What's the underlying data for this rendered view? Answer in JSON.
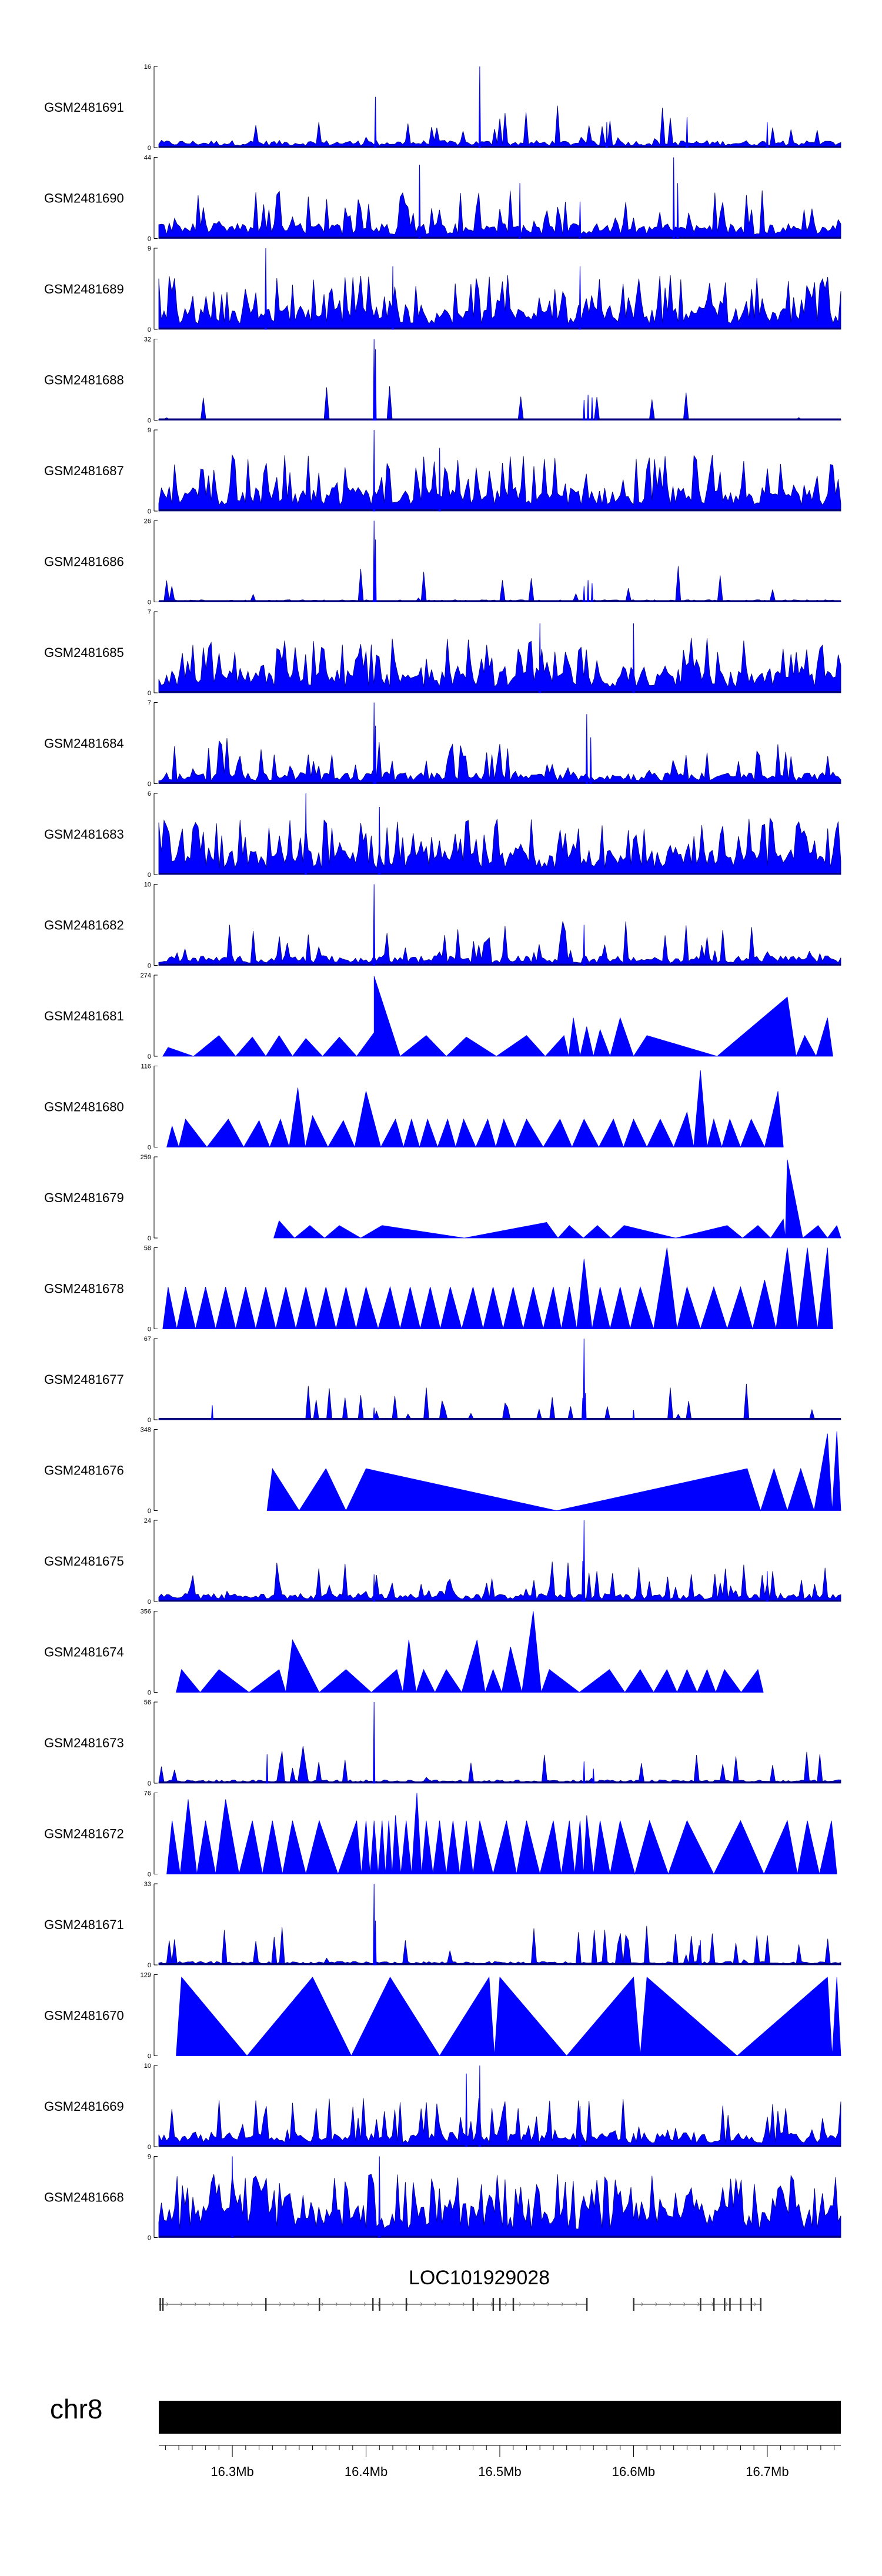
{
  "chart_data": {
    "type": "area",
    "title": "",
    "xlabel": "",
    "ylabel": "",
    "x_range_mb": [
      16.245,
      16.755
    ],
    "fill_color": "#0000ff",
    "outline_color": "#00007f",
    "tracks": [
      {
        "name": "GSM2481691",
        "ymax": 16,
        "style": "dense",
        "baseline": 1.2,
        "noise": 0.1,
        "spikes": [
          [
            16.407,
            10
          ],
          [
            16.485,
            16
          ],
          [
            16.58,
            5
          ],
          [
            16.64,
            6
          ],
          [
            16.7,
            5
          ]
        ]
      },
      {
        "name": "GSM2481690",
        "ymax": 44,
        "style": "dense",
        "baseline": 7,
        "noise": 0.18,
        "spikes": [
          [
            16.44,
            40
          ],
          [
            16.515,
            30
          ],
          [
            16.63,
            44
          ],
          [
            16.633,
            30
          ],
          [
            16.56,
            20
          ]
        ]
      },
      {
        "name": "GSM2481689",
        "ymax": 9,
        "style": "dense",
        "baseline": 2.0,
        "noise": 0.35,
        "spikes": [
          [
            16.325,
            9
          ],
          [
            16.42,
            7
          ],
          [
            16.56,
            7
          ]
        ]
      },
      {
        "name": "GSM2481688",
        "ymax": 32,
        "style": "dense",
        "baseline": 0.4,
        "noise": 0.05,
        "spikes": [
          [
            16.406,
            32
          ],
          [
            16.407,
            28
          ],
          [
            16.563,
            8
          ],
          [
            16.566,
            10
          ],
          [
            16.569,
            9
          ],
          [
            16.572,
            7
          ]
        ]
      },
      {
        "name": "GSM2481687",
        "ymax": 9,
        "style": "dense",
        "baseline": 2.2,
        "noise": 0.3,
        "spikes": [
          [
            16.406,
            9
          ],
          [
            16.455,
            7
          ]
        ]
      },
      {
        "name": "GSM2481686",
        "ymax": 26,
        "style": "dense",
        "baseline": 0.6,
        "noise": 0.07,
        "spikes": [
          [
            16.406,
            26
          ],
          [
            16.407,
            20
          ],
          [
            16.563,
            5
          ],
          [
            16.566,
            7
          ],
          [
            16.569,
            6
          ]
        ]
      },
      {
        "name": "GSM2481685",
        "ymax": 7,
        "style": "dense",
        "baseline": 1.6,
        "noise": 0.35,
        "spikes": [
          [
            16.53,
            6
          ],
          [
            16.6,
            6
          ]
        ]
      },
      {
        "name": "GSM2481684",
        "ymax": 7,
        "style": "dense",
        "baseline": 0.8,
        "noise": 0.22,
        "spikes": [
          [
            16.406,
            7
          ],
          [
            16.407,
            5
          ],
          [
            16.565,
            6
          ],
          [
            16.568,
            4
          ]
        ]
      },
      {
        "name": "GSM2481683",
        "ymax": 6,
        "style": "dense",
        "baseline": 1.5,
        "noise": 0.35,
        "spikes": [
          [
            16.355,
            6
          ],
          [
            16.41,
            5
          ]
        ]
      },
      {
        "name": "GSM2481682",
        "ymax": 10,
        "style": "dense",
        "baseline": 1.0,
        "noise": 0.15,
        "spikes": [
          [
            16.406,
            10
          ],
          [
            16.563,
            5
          ]
        ]
      },
      {
        "name": "GSM2481681",
        "ymax": 274,
        "style": "sparse",
        "peaks": [
          [
            16.252,
            30
          ],
          [
            16.29,
            70
          ],
          [
            16.315,
            65
          ],
          [
            16.335,
            70
          ],
          [
            16.355,
            60
          ],
          [
            16.38,
            65
          ],
          [
            16.406,
            80
          ],
          [
            16.406,
            270
          ],
          [
            16.445,
            70
          ],
          [
            16.475,
            65
          ],
          [
            16.52,
            70
          ],
          [
            16.548,
            70
          ],
          [
            16.555,
            130
          ],
          [
            16.565,
            100
          ],
          [
            16.575,
            90
          ],
          [
            16.59,
            130
          ],
          [
            16.61,
            70
          ],
          [
            16.715,
            200
          ],
          [
            16.728,
            70
          ],
          [
            16.745,
            130
          ]
        ]
      },
      {
        "name": "GSM2481680",
        "ymax": 116,
        "style": "sparse",
        "peaks": [
          [
            16.255,
            30
          ],
          [
            16.265,
            40
          ],
          [
            16.297,
            40
          ],
          [
            16.32,
            38
          ],
          [
            16.336,
            40
          ],
          [
            16.349,
            85
          ],
          [
            16.36,
            45
          ],
          [
            16.383,
            38
          ],
          [
            16.4,
            80
          ],
          [
            16.422,
            40
          ],
          [
            16.434,
            40
          ],
          [
            16.446,
            40
          ],
          [
            16.461,
            40
          ],
          [
            16.473,
            40
          ],
          [
            16.491,
            40
          ],
          [
            16.503,
            40
          ],
          [
            16.52,
            40
          ],
          [
            16.545,
            40
          ],
          [
            16.563,
            40
          ],
          [
            16.585,
            40
          ],
          [
            16.6,
            40
          ],
          [
            16.62,
            40
          ],
          [
            16.64,
            50
          ],
          [
            16.65,
            110
          ],
          [
            16.66,
            40
          ],
          [
            16.672,
            40
          ],
          [
            16.688,
            40
          ],
          [
            16.708,
            80
          ]
        ]
      },
      {
        "name": "GSM2481679",
        "ymax": 259,
        "style": "sparse",
        "peaks": [
          [
            16.335,
            55
          ],
          [
            16.358,
            40
          ],
          [
            16.38,
            40
          ],
          [
            16.412,
            40
          ],
          [
            16.535,
            50
          ],
          [
            16.552,
            40
          ],
          [
            16.573,
            40
          ],
          [
            16.593,
            40
          ],
          [
            16.67,
            40
          ],
          [
            16.693,
            40
          ],
          [
            16.712,
            60
          ],
          [
            16.715,
            250
          ],
          [
            16.738,
            40
          ],
          [
            16.752,
            40
          ]
        ]
      },
      {
        "name": "GSM2481678",
        "ymax": 58,
        "style": "sparse",
        "peaks": [
          [
            16.252,
            30
          ],
          [
            16.265,
            30
          ],
          [
            16.28,
            30
          ],
          [
            16.295,
            30
          ],
          [
            16.31,
            30
          ],
          [
            16.325,
            30
          ],
          [
            16.34,
            30
          ],
          [
            16.355,
            30
          ],
          [
            16.37,
            30
          ],
          [
            16.385,
            30
          ],
          [
            16.4,
            30
          ],
          [
            16.418,
            30
          ],
          [
            16.433,
            30
          ],
          [
            16.448,
            30
          ],
          [
            16.463,
            30
          ],
          [
            16.48,
            30
          ],
          [
            16.495,
            30
          ],
          [
            16.51,
            30
          ],
          [
            16.525,
            30
          ],
          [
            16.54,
            30
          ],
          [
            16.552,
            30
          ],
          [
            16.563,
            50
          ],
          [
            16.575,
            30
          ],
          [
            16.59,
            30
          ],
          [
            16.605,
            30
          ],
          [
            16.625,
            58
          ],
          [
            16.64,
            30
          ],
          [
            16.66,
            30
          ],
          [
            16.68,
            30
          ],
          [
            16.698,
            35
          ],
          [
            16.715,
            58
          ],
          [
            16.73,
            58
          ],
          [
            16.745,
            58
          ]
        ]
      },
      {
        "name": "GSM2481677",
        "ymax": 67,
        "style": "dense",
        "baseline": 1.0,
        "noise": 0.08,
        "spikes": [
          [
            16.285,
            12
          ],
          [
            16.406,
            10
          ],
          [
            16.563,
            67
          ],
          [
            16.562,
            18
          ],
          [
            16.564,
            22
          ],
          [
            16.6,
            8
          ]
        ]
      },
      {
        "name": "GSM2481676",
        "ymax": 348,
        "style": "sparse",
        "peaks": [
          [
            16.33,
            180
          ],
          [
            16.37,
            180
          ],
          [
            16.4,
            180
          ],
          [
            16.685,
            180
          ],
          [
            16.705,
            180
          ],
          [
            16.725,
            180
          ],
          [
            16.745,
            330
          ],
          [
            16.752,
            340
          ]
        ]
      },
      {
        "name": "GSM2481675",
        "ymax": 24,
        "style": "dense",
        "baseline": 2.0,
        "noise": 0.18,
        "spikes": [
          [
            16.563,
            24
          ],
          [
            16.562,
            12
          ],
          [
            16.406,
            8
          ],
          [
            16.7,
            9
          ]
        ]
      },
      {
        "name": "GSM2481674",
        "ymax": 356,
        "style": "sparse",
        "peaks": [
          [
            16.262,
            100
          ],
          [
            16.29,
            100
          ],
          [
            16.335,
            100
          ],
          [
            16.345,
            230
          ],
          [
            16.385,
            100
          ],
          [
            16.423,
            100
          ],
          [
            16.432,
            230
          ],
          [
            16.443,
            100
          ],
          [
            16.46,
            100
          ],
          [
            16.483,
            230
          ],
          [
            16.495,
            100
          ],
          [
            16.508,
            200
          ],
          [
            16.525,
            356
          ],
          [
            16.537,
            100
          ],
          [
            16.582,
            100
          ],
          [
            16.605,
            100
          ],
          [
            16.625,
            100
          ],
          [
            16.64,
            100
          ],
          [
            16.655,
            100
          ],
          [
            16.668,
            100
          ],
          [
            16.693,
            100
          ]
        ]
      },
      {
        "name": "GSM2481673",
        "ymax": 56,
        "style": "dense",
        "baseline": 2.0,
        "noise": 0.1,
        "spikes": [
          [
            16.406,
            56
          ],
          [
            16.326,
            20
          ],
          [
            16.563,
            15
          ],
          [
            16.57,
            10
          ]
        ]
      },
      {
        "name": "GSM2481672",
        "ymax": 76,
        "style": "sparse",
        "peaks": [
          [
            16.255,
            50
          ],
          [
            16.267,
            70
          ],
          [
            16.28,
            50
          ],
          [
            16.295,
            70
          ],
          [
            16.315,
            50
          ],
          [
            16.33,
            50
          ],
          [
            16.345,
            50
          ],
          [
            16.365,
            50
          ],
          [
            16.393,
            50
          ],
          [
            16.4,
            50
          ],
          [
            16.406,
            50
          ],
          [
            16.412,
            50
          ],
          [
            16.417,
            50
          ],
          [
            16.422,
            55
          ],
          [
            16.43,
            50
          ],
          [
            16.438,
            76
          ],
          [
            16.445,
            50
          ],
          [
            16.455,
            50
          ],
          [
            16.465,
            50
          ],
          [
            16.475,
            50
          ],
          [
            16.485,
            50
          ],
          [
            16.505,
            50
          ],
          [
            16.52,
            50
          ],
          [
            16.54,
            50
          ],
          [
            16.552,
            50
          ],
          [
            16.56,
            50
          ],
          [
            16.565,
            55
          ],
          [
            16.575,
            50
          ],
          [
            16.59,
            50
          ],
          [
            16.612,
            50
          ],
          [
            16.64,
            50
          ],
          [
            16.68,
            50
          ],
          [
            16.715,
            50
          ],
          [
            16.73,
            50
          ],
          [
            16.748,
            50
          ]
        ]
      },
      {
        "name": "GSM2481671",
        "ymax": 33,
        "style": "dense",
        "baseline": 1.2,
        "noise": 0.12,
        "spikes": [
          [
            16.406,
            33
          ],
          [
            16.407,
            18
          ],
          [
            16.65,
            10
          ]
        ]
      },
      {
        "name": "GSM2481670",
        "ymax": 129,
        "style": "sparse",
        "peaks": [
          [
            16.262,
            125
          ],
          [
            16.36,
            125
          ],
          [
            16.418,
            125
          ],
          [
            16.492,
            125
          ],
          [
            16.5,
            125
          ],
          [
            16.6,
            125
          ],
          [
            16.61,
            125
          ],
          [
            16.745,
            125
          ],
          [
            16.752,
            125
          ]
        ]
      },
      {
        "name": "GSM2481669",
        "ymax": 10,
        "style": "dense",
        "baseline": 1.5,
        "noise": 0.2,
        "spikes": [
          [
            16.475,
            9
          ],
          [
            16.485,
            10
          ],
          [
            16.56,
            5
          ]
        ]
      },
      {
        "name": "GSM2481668",
        "ymax": 9,
        "style": "dense",
        "baseline": 3.0,
        "noise": 0.45,
        "spikes": [
          [
            16.3,
            9
          ],
          [
            16.41,
            9
          ]
        ]
      }
    ],
    "gene": {
      "name": "LOC101929028",
      "segments": [
        [
          16.245,
          16.565
        ],
        [
          16.6,
          16.695
        ]
      ],
      "exons": [
        16.246,
        16.248,
        16.325,
        16.365,
        16.405,
        16.41,
        16.43,
        16.48,
        16.495,
        16.5,
        16.51,
        16.565,
        16.6,
        16.65,
        16.66,
        16.668,
        16.672,
        16.68,
        16.688,
        16.695
      ]
    },
    "chromosome": {
      "name": "chr8",
      "ticks": [
        16.3,
        16.4,
        16.5,
        16.6,
        16.7
      ],
      "tick_labels": [
        "16.3Mb",
        "16.4Mb",
        "16.5Mb",
        "16.6Mb",
        "16.7Mb"
      ]
    }
  }
}
